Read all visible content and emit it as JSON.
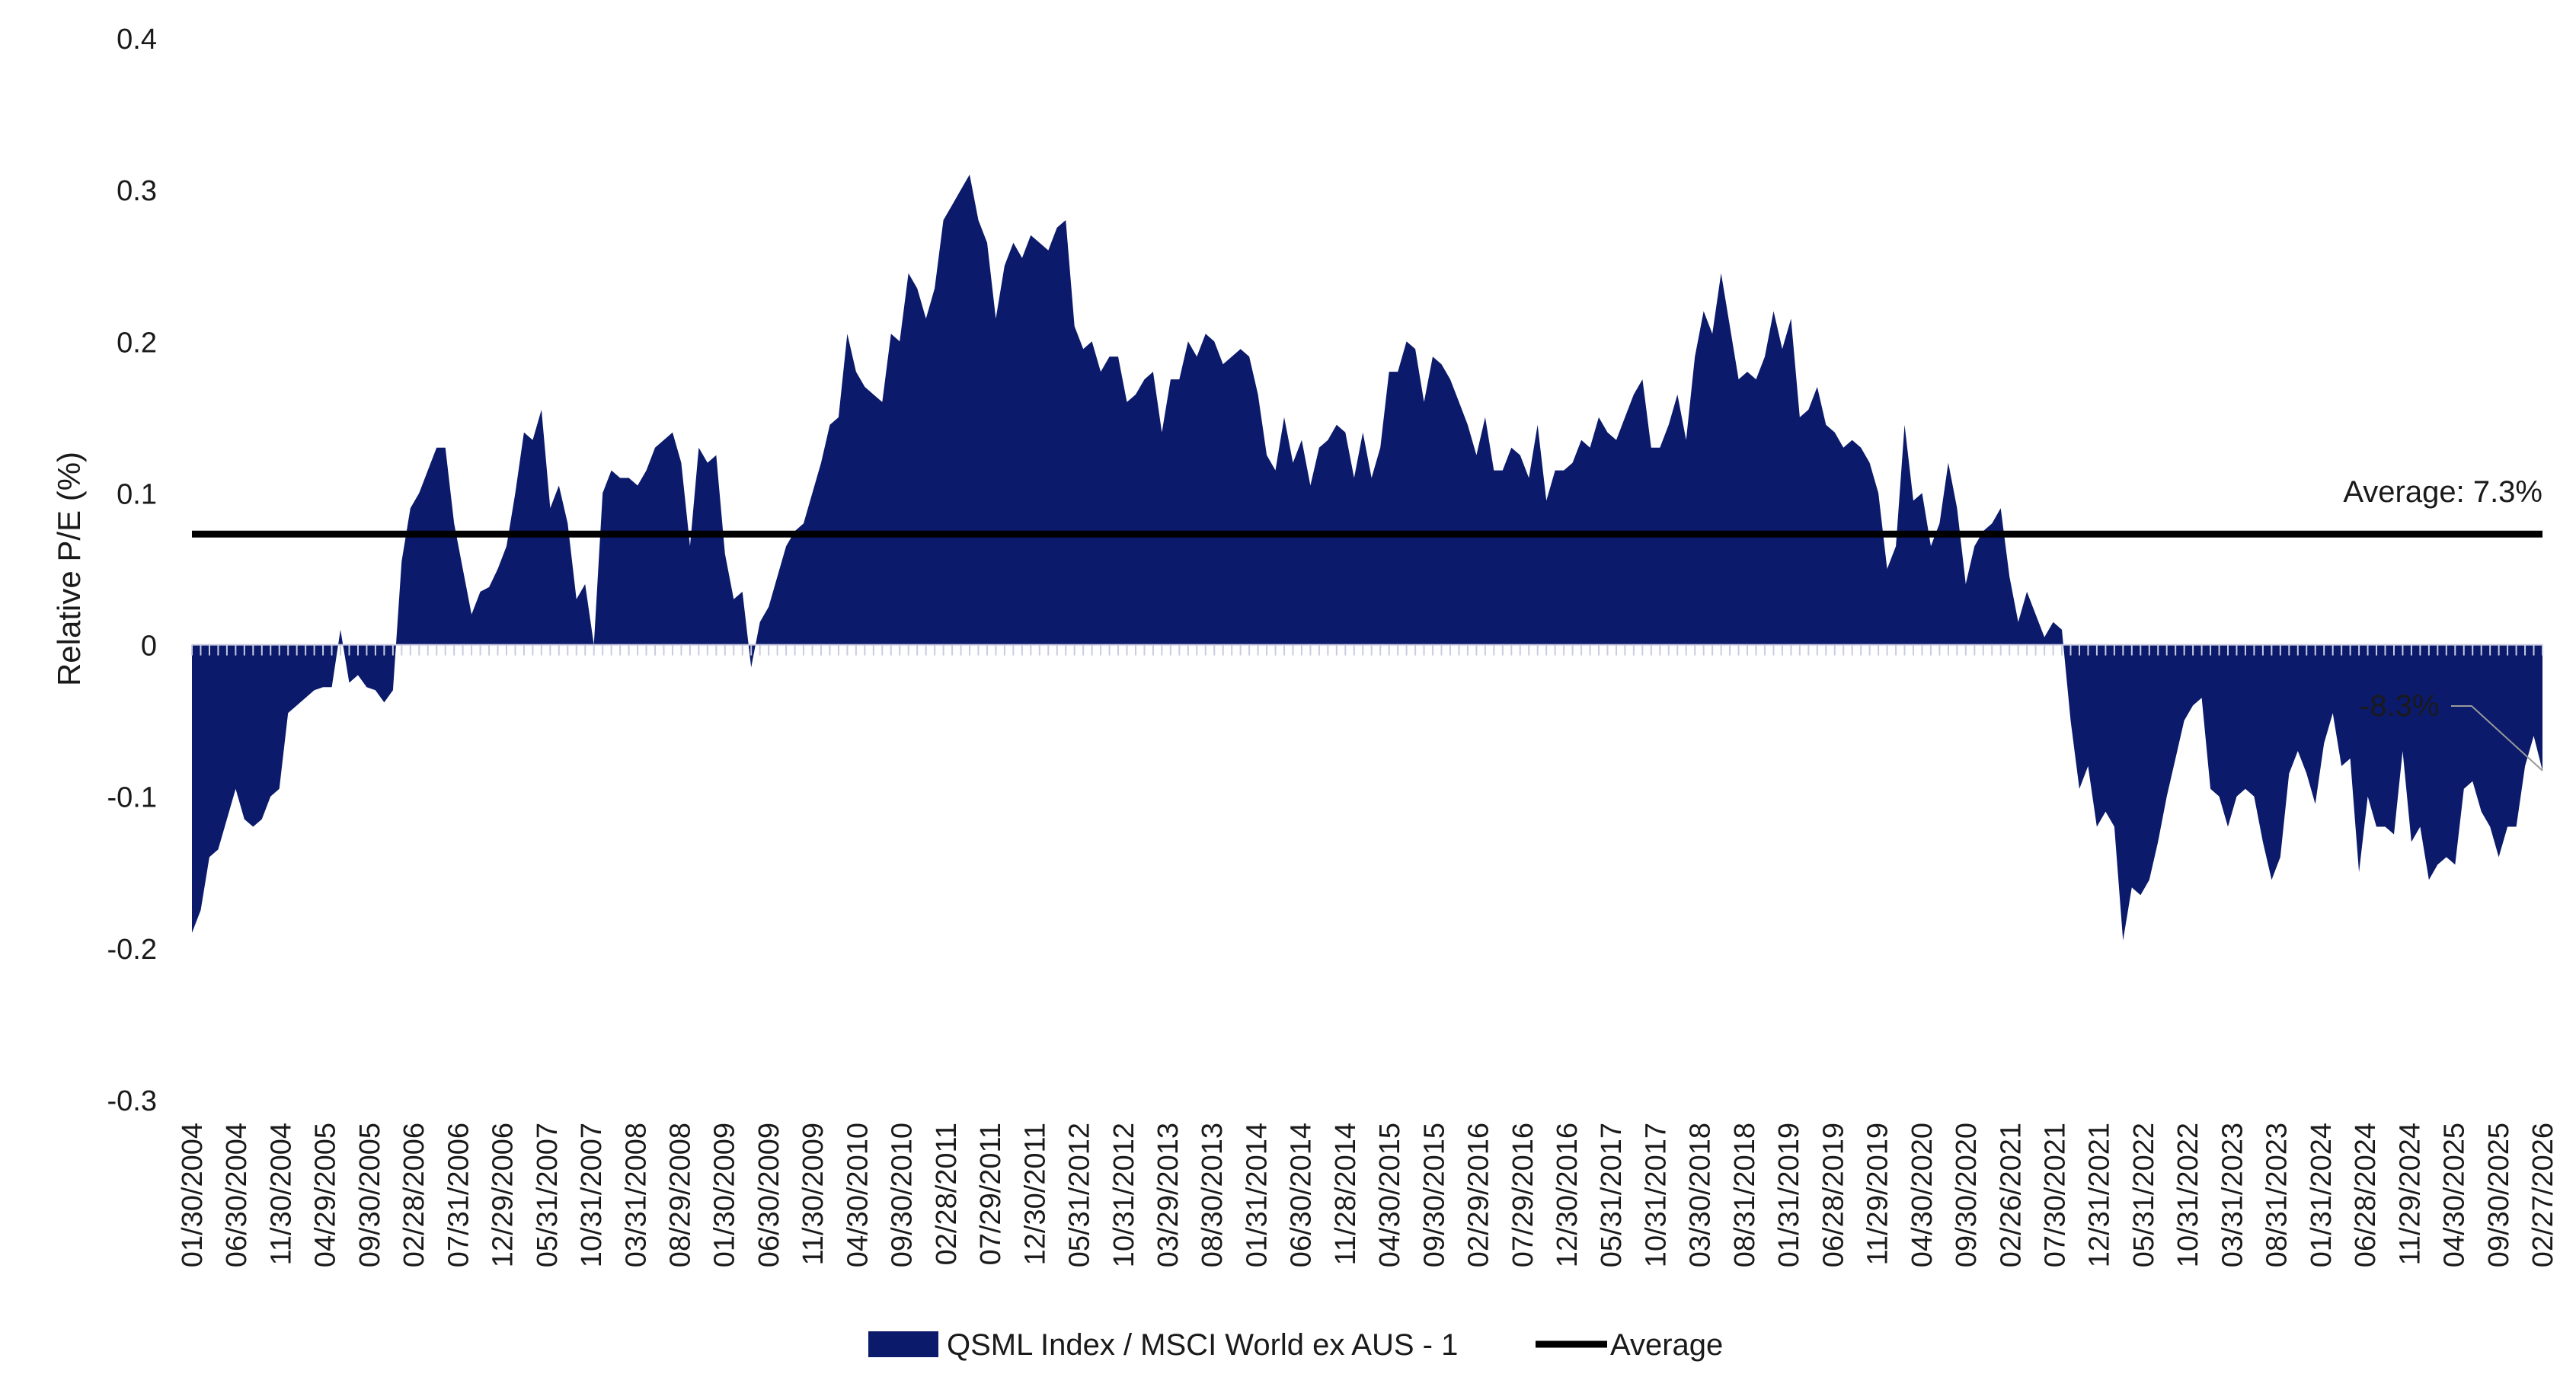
{
  "chart_data": {
    "type": "area",
    "title": "",
    "xlabel": "",
    "ylabel": "Relative P/E (%)",
    "ylim": [
      -0.3,
      0.4
    ],
    "yticks": [
      0.4,
      0.3,
      0.2,
      0.1,
      0,
      -0.1,
      -0.2,
      -0.3
    ],
    "ytick_labels": [
      "0.4",
      "0.3",
      "0.2",
      "0.1",
      "0",
      "-0.1",
      "-0.2",
      "-0.3"
    ],
    "grid": false,
    "legend_position": "bottom",
    "x_tick_labels": [
      "01/30/2004",
      "06/30/2004",
      "11/30/2004",
      "04/29/2005",
      "09/30/2005",
      "02/28/2006",
      "07/31/2006",
      "12/29/2006",
      "05/31/2007",
      "10/31/2007",
      "03/31/2008",
      "08/29/2008",
      "01/30/2009",
      "06/30/2009",
      "11/30/2009",
      "04/30/2010",
      "09/30/2010",
      "02/28/2011",
      "07/29/2011",
      "12/30/2011",
      "05/31/2012",
      "10/31/2012",
      "03/29/2013",
      "08/30/2013",
      "01/31/2014",
      "06/30/2014",
      "11/28/2014",
      "04/30/2015",
      "09/30/2015",
      "02/29/2016",
      "07/29/2016",
      "12/30/2016",
      "05/31/2017",
      "10/31/2017",
      "03/30/2018",
      "08/31/2018",
      "01/31/2019",
      "06/28/2019",
      "11/29/2019",
      "04/30/2020",
      "09/30/2020",
      "02/26/2021",
      "07/30/2021",
      "12/31/2021",
      "05/31/2022",
      "10/31/2022",
      "03/31/2023",
      "08/31/2023",
      "01/31/2024",
      "06/28/2024",
      "11/29/2024",
      "04/30/2025",
      "09/30/2025",
      "02/27/2026"
    ],
    "series": [
      {
        "name": "QSML Index / MSCI World ex AUS - 1",
        "kind": "area",
        "color": "#0b1a6b",
        "values": [
          -0.19,
          -0.175,
          -0.14,
          -0.135,
          -0.115,
          -0.095,
          -0.115,
          -0.12,
          -0.115,
          -0.1,
          -0.095,
          -0.045,
          -0.04,
          -0.035,
          -0.03,
          -0.028,
          -0.028,
          0.01,
          -0.025,
          -0.02,
          -0.028,
          -0.03,
          -0.038,
          -0.03,
          0.055,
          0.09,
          0.1,
          0.115,
          0.13,
          0.13,
          0.08,
          0.05,
          0.02,
          0.035,
          0.038,
          0.05,
          0.065,
          0.1,
          0.14,
          0.135,
          0.155,
          0.09,
          0.105,
          0.08,
          0.03,
          0.04,
          0.0,
          0.1,
          0.115,
          0.11,
          0.11,
          0.105,
          0.115,
          0.13,
          0.135,
          0.14,
          0.12,
          0.065,
          0.13,
          0.12,
          0.125,
          0.06,
          0.03,
          0.035,
          -0.015,
          0.015,
          0.025,
          0.045,
          0.065,
          0.075,
          0.08,
          0.1,
          0.12,
          0.145,
          0.15,
          0.205,
          0.18,
          0.17,
          0.165,
          0.16,
          0.205,
          0.2,
          0.245,
          0.235,
          0.215,
          0.235,
          0.28,
          0.29,
          0.3,
          0.31,
          0.28,
          0.265,
          0.215,
          0.25,
          0.265,
          0.255,
          0.27,
          0.265,
          0.26,
          0.275,
          0.28,
          0.21,
          0.195,
          0.2,
          0.18,
          0.19,
          0.19,
          0.16,
          0.165,
          0.175,
          0.18,
          0.14,
          0.175,
          0.175,
          0.2,
          0.19,
          0.205,
          0.2,
          0.185,
          0.19,
          0.195,
          0.19,
          0.165,
          0.125,
          0.115,
          0.15,
          0.12,
          0.135,
          0.105,
          0.13,
          0.135,
          0.145,
          0.14,
          0.11,
          0.14,
          0.11,
          0.13,
          0.18,
          0.18,
          0.2,
          0.195,
          0.16,
          0.19,
          0.185,
          0.175,
          0.16,
          0.145,
          0.125,
          0.15,
          0.115,
          0.115,
          0.13,
          0.125,
          0.11,
          0.145,
          0.095,
          0.115,
          0.115,
          0.12,
          0.135,
          0.13,
          0.15,
          0.14,
          0.135,
          0.15,
          0.165,
          0.175,
          0.13,
          0.13,
          0.145,
          0.165,
          0.135,
          0.19,
          0.22,
          0.205,
          0.245,
          0.21,
          0.175,
          0.18,
          0.175,
          0.19,
          0.22,
          0.195,
          0.215,
          0.15,
          0.155,
          0.17,
          0.145,
          0.14,
          0.13,
          0.135,
          0.13,
          0.12,
          0.1,
          0.05,
          0.065,
          0.145,
          0.095,
          0.1,
          0.065,
          0.08,
          0.12,
          0.09,
          0.04,
          0.065,
          0.075,
          0.08,
          0.09,
          0.045,
          0.015,
          0.035,
          0.02,
          0.005,
          0.015,
          0.01,
          -0.05,
          -0.095,
          -0.08,
          -0.12,
          -0.11,
          -0.12,
          -0.195,
          -0.16,
          -0.165,
          -0.155,
          -0.13,
          -0.1,
          -0.075,
          -0.05,
          -0.04,
          -0.035,
          -0.095,
          -0.1,
          -0.12,
          -0.1,
          -0.095,
          -0.1,
          -0.13,
          -0.155,
          -0.14,
          -0.085,
          -0.07,
          -0.085,
          -0.105,
          -0.065,
          -0.045,
          -0.08,
          -0.075,
          -0.15,
          -0.1,
          -0.12,
          -0.12,
          -0.125,
          -0.07,
          -0.13,
          -0.12,
          -0.155,
          -0.145,
          -0.14,
          -0.145,
          -0.095,
          -0.09,
          -0.11,
          -0.12,
          -0.14,
          -0.12,
          -0.12,
          -0.08,
          -0.06,
          -0.083
        ]
      },
      {
        "name": "Average",
        "kind": "line",
        "color": "#000000",
        "value": 0.073
      }
    ],
    "annotations": {
      "average_label": "Average: 7.3%",
      "last_value_label": "-8.3%"
    }
  }
}
